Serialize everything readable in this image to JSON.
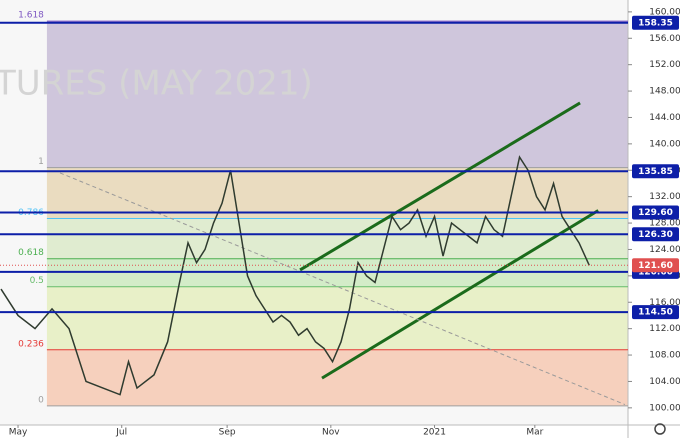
{
  "chart_data": {
    "type": "line",
    "watermark": "TURES (MAY 2021)",
    "xlim": [
      -10.6,
      358.8
    ],
    "xticks": [
      {
        "value": 0,
        "label": "May"
      },
      {
        "value": 61,
        "label": "Jul"
      },
      {
        "value": 123,
        "label": "Sep"
      },
      {
        "value": 184,
        "label": "Nov"
      },
      {
        "value": 245,
        "label": "2021"
      },
      {
        "value": 304,
        "label": "Mar"
      }
    ],
    "ylim": [
      97.4,
      161.8
    ],
    "yticks": [
      {
        "value": 100,
        "label": "100.00"
      },
      {
        "value": 104,
        "label": "104.00"
      },
      {
        "value": 108,
        "label": "108.00"
      },
      {
        "value": 112,
        "label": "112.00"
      },
      {
        "value": 116,
        "label": "116.00"
      },
      {
        "value": 120,
        "label": "120.00"
      },
      {
        "value": 124,
        "label": "124.00"
      },
      {
        "value": 128,
        "label": "128.00"
      },
      {
        "value": 132,
        "label": "132.00"
      },
      {
        "value": 136,
        "label": "136.00"
      },
      {
        "value": 140,
        "label": "140.00"
      },
      {
        "value": 144,
        "label": "144.00"
      },
      {
        "value": 148,
        "label": "148.00"
      },
      {
        "value": 152,
        "label": "152.00"
      },
      {
        "value": 156,
        "label": "156.00"
      },
      {
        "value": 160,
        "label": "160.00"
      }
    ],
    "series": [
      {
        "name": "Close",
        "color": "#2f3b2f",
        "x": [
          -10,
          0,
          10,
          20,
          30,
          40,
          50,
          60,
          65,
          70,
          80,
          88,
          95,
          100,
          105,
          110,
          115,
          120,
          125,
          130,
          135,
          140,
          145,
          150,
          155,
          160,
          165,
          170,
          175,
          180,
          185,
          190,
          195,
          200,
          205,
          210,
          215,
          220,
          225,
          230,
          235,
          240,
          245,
          250,
          255,
          260,
          265,
          270,
          275,
          280,
          285,
          290,
          295,
          300,
          305,
          310,
          315,
          320,
          325,
          330,
          336
        ],
        "values": [
          118,
          114,
          112,
          115,
          112,
          104,
          103,
          102,
          107,
          103,
          105,
          110,
          119,
          125,
          122,
          124,
          128,
          131,
          136,
          128,
          120,
          117,
          115,
          113,
          114,
          113,
          111,
          112,
          110,
          109,
          107,
          110,
          115,
          122,
          120,
          119,
          124,
          129,
          127,
          128,
          130,
          126,
          129,
          123,
          128,
          127,
          126,
          125,
          129,
          127,
          126,
          132,
          138,
          136,
          132,
          130,
          134,
          129,
          127,
          125,
          121.6
        ]
      }
    ],
    "fib_start": 17,
    "fib_levels": [
      {
        "label": "1.618",
        "price": 158.6,
        "color": "#7e57c2"
      },
      {
        "label": "1",
        "price": 136.4,
        "color": "#9e9e9e"
      },
      {
        "label": "0.786",
        "price": 128.7,
        "color": "#4fc3f7"
      },
      {
        "label": "0.618",
        "price": 122.6,
        "color": "#4caf50"
      },
      {
        "label": "0.5",
        "price": 118.35,
        "color": "#66bb6a"
      },
      {
        "label": "0.236",
        "price": 108.8,
        "color": "#e53935"
      },
      {
        "label": "0",
        "price": 100.3,
        "color": "#9e9e9e"
      }
    ],
    "fib_fills": [
      "#cfc6dc",
      "#eadcc0",
      "#e0ecd0",
      "#d3ecc8",
      "#e8f0c8",
      "#f6d0bd"
    ],
    "levels": [
      {
        "value": 158.35,
        "label": "158.35"
      },
      {
        "value": 135.85,
        "label": "135.85"
      },
      {
        "value": 129.6,
        "label": "129.60"
      },
      {
        "value": 126.3,
        "label": "126.30"
      },
      {
        "value": 120.6,
        "label": "120.60"
      },
      {
        "value": 114.5,
        "label": "114.50"
      }
    ],
    "level_color": "#0d1fa8",
    "last_price": {
      "value": 121.6,
      "label": "121.60",
      "color": "#e05050"
    },
    "trendlines": [
      {
        "x": [
          165.9,
          330.6
        ],
        "y": [
          120.9,
          146.2
        ],
        "color": "#1b6b1b"
      },
      {
        "x": [
          178.8,
          341.3
        ],
        "y": [
          104.5,
          129.9
        ],
        "color": "#1b6b1b"
      },
      {
        "x": [
          24.7,
          357
        ],
        "y": [
          135.6,
          100.5
        ],
        "color": "#9a9a9a",
        "dashed": true
      }
    ]
  }
}
